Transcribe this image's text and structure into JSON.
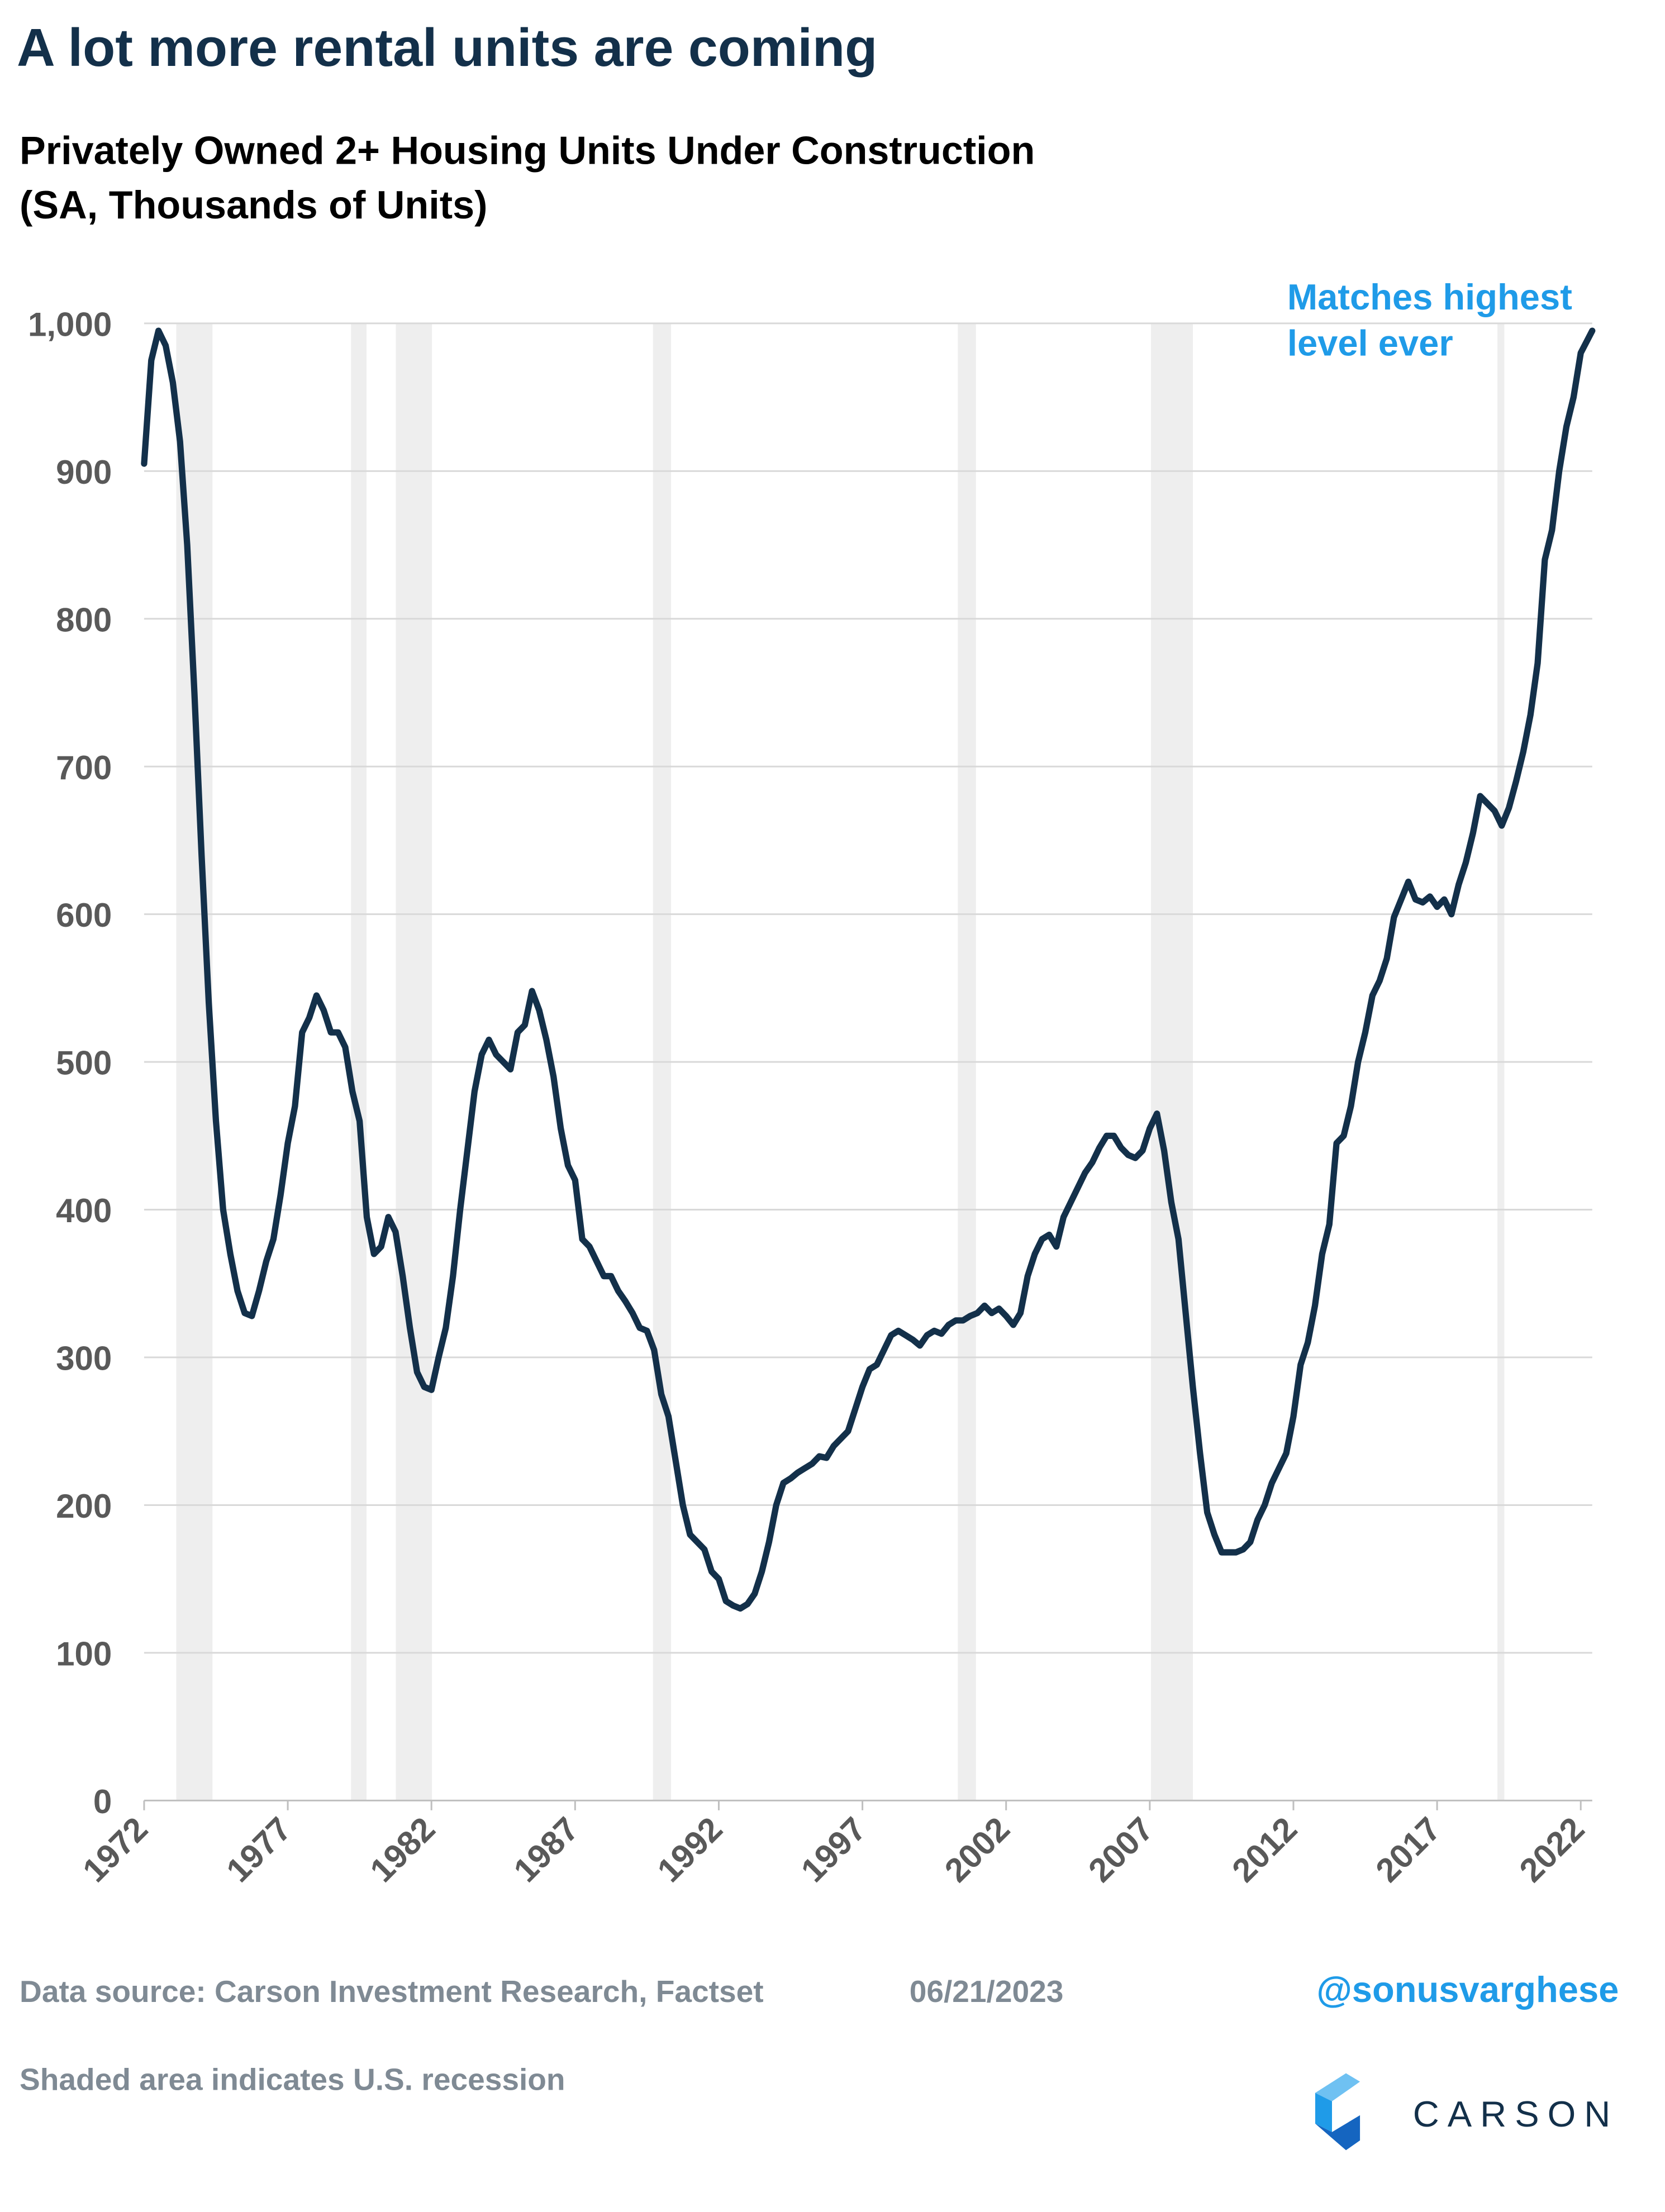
{
  "chart_data": {
    "type": "line",
    "title": "A lot more rental units are coming",
    "subtitle": [
      "Privately Owned 2+ Housing Units Under Construction",
      "(SA, Thousands of Units)"
    ],
    "annotation": [
      "Matches highest",
      "level ever"
    ],
    "source": "Data source: Carson Investment Research, Factset",
    "date": "06/21/2023",
    "handle": "@sonusvarghese",
    "note": "Shaded area indicates U.S. recession",
    "logo": "CARSON",
    "color": "#13304a",
    "recession_color": "#eeeeee",
    "grid": true,
    "xlim": [
      1972,
      2022.4
    ],
    "xticks": [
      1972,
      1977,
      1982,
      1987,
      1992,
      1997,
      2002,
      2007,
      2012,
      2017,
      2022
    ],
    "ylim": [
      0,
      1000
    ],
    "yticks": [
      0,
      100,
      200,
      300,
      400,
      500,
      600,
      700,
      800,
      900,
      {
        "value": 1000,
        "label": "1,000"
      }
    ],
    "recessions": [
      [
        1973.12,
        1974.38
      ],
      [
        1979.2,
        1979.74
      ],
      [
        1980.76,
        1982.02
      ],
      [
        1989.71,
        1990.34
      ],
      [
        2000.32,
        2000.95
      ],
      [
        2007.04,
        2008.5
      ],
      [
        2019.1,
        2019.34
      ]
    ],
    "x": [
      1972,
      1972.25,
      1972.5,
      1972.75,
      1973,
      1973.25,
      1973.5,
      1973.75,
      1974,
      1974.25,
      1974.5,
      1974.75,
      1975,
      1975.25,
      1975.5,
      1975.75,
      1976,
      1976.25,
      1976.5,
      1976.75,
      1977,
      1977.25,
      1977.5,
      1977.75,
      1978,
      1978.25,
      1978.5,
      1978.75,
      1979,
      1979.25,
      1979.5,
      1979.75,
      1980,
      1980.25,
      1980.5,
      1980.75,
      1981,
      1981.25,
      1981.5,
      1981.75,
      1982,
      1982.25,
      1982.5,
      1982.75,
      1983,
      1983.25,
      1983.5,
      1983.75,
      1984,
      1984.25,
      1984.5,
      1984.75,
      1985,
      1985.25,
      1985.5,
      1985.75,
      1986,
      1986.25,
      1986.5,
      1986.75,
      1987,
      1987.25,
      1987.5,
      1987.75,
      1988,
      1988.25,
      1988.5,
      1988.75,
      1989,
      1989.25,
      1989.5,
      1989.75,
      1990,
      1990.25,
      1990.5,
      1990.75,
      1991,
      1991.25,
      1991.5,
      1991.75,
      1992,
      1992.25,
      1992.5,
      1992.75,
      1993,
      1993.25,
      1993.5,
      1993.75,
      1994,
      1994.25,
      1994.5,
      1994.75,
      1995,
      1995.25,
      1995.5,
      1995.75,
      1996,
      1996.25,
      1996.5,
      1996.75,
      1997,
      1997.25,
      1997.5,
      1997.75,
      1998,
      1998.25,
      1998.5,
      1998.75,
      1999,
      1999.25,
      1999.5,
      1999.75,
      2000,
      2000.25,
      2000.5,
      2000.75,
      2001,
      2001.25,
      2001.5,
      2001.75,
      2002,
      2002.25,
      2002.5,
      2002.75,
      2003,
      2003.25,
      2003.5,
      2003.75,
      2004,
      2004.25,
      2004.5,
      2004.75,
      2005,
      2005.25,
      2005.5,
      2005.75,
      2006,
      2006.25,
      2006.5,
      2006.75,
      2007,
      2007.25,
      2007.5,
      2007.75,
      2008,
      2008.25,
      2008.5,
      2008.75,
      2009,
      2009.25,
      2009.5,
      2009.75,
      2010,
      2010.25,
      2010.5,
      2010.75,
      2011,
      2011.25,
      2011.5,
      2011.75,
      2012,
      2012.25,
      2012.5,
      2012.75,
      2013,
      2013.25,
      2013.5,
      2013.75,
      2014,
      2014.25,
      2014.5,
      2014.75,
      2015,
      2015.25,
      2015.5,
      2015.75,
      2016,
      2016.25,
      2016.5,
      2016.75,
      2017,
      2017.25,
      2017.5,
      2017.75,
      2018,
      2018.25,
      2018.5,
      2018.75,
      2019,
      2019.25,
      2019.5,
      2019.75,
      2020,
      2020.25,
      2020.5,
      2020.75,
      2021,
      2021.25,
      2021.5,
      2021.75,
      2022,
      2022.4
    ],
    "values": [
      905,
      975,
      995,
      985,
      960,
      920,
      850,
      750,
      640,
      540,
      460,
      400,
      370,
      345,
      330,
      328,
      345,
      365,
      380,
      410,
      445,
      470,
      520,
      530,
      545,
      535,
      520,
      520,
      510,
      480,
      460,
      395,
      370,
      375,
      395,
      385,
      355,
      320,
      290,
      280,
      278,
      300,
      320,
      355,
      400,
      440,
      480,
      505,
      515,
      505,
      500,
      495,
      520,
      525,
      548,
      535,
      515,
      490,
      455,
      430,
      420,
      380,
      375,
      365,
      355,
      355,
      345,
      338,
      330,
      320,
      318,
      305,
      275,
      260,
      230,
      200,
      180,
      175,
      170,
      155,
      150,
      135,
      132,
      130,
      133,
      140,
      155,
      175,
      200,
      215,
      218,
      222,
      225,
      228,
      233,
      232,
      240,
      245,
      250,
      265,
      280,
      292,
      295,
      305,
      315,
      318,
      315,
      312,
      308,
      315,
      318,
      316,
      322,
      325,
      325,
      328,
      330,
      335,
      330,
      333,
      328,
      322,
      330,
      355,
      370,
      380,
      383,
      375,
      395,
      405,
      415,
      425,
      432,
      442,
      450,
      450,
      442,
      437,
      435,
      440,
      455,
      465,
      440,
      405,
      380,
      330,
      280,
      235,
      195,
      180,
      168,
      168,
      168,
      170,
      175,
      190,
      200,
      215,
      225,
      235,
      260,
      295,
      310,
      335,
      370,
      390,
      445,
      450,
      470,
      500,
      520,
      545,
      555,
      570,
      598,
      610,
      622,
      610,
      608,
      612,
      605,
      610,
      600,
      620,
      635,
      655,
      680,
      675,
      670,
      660,
      672,
      690,
      710,
      735,
      770,
      840,
      860,
      900,
      930,
      950,
      980,
      995
    ]
  }
}
